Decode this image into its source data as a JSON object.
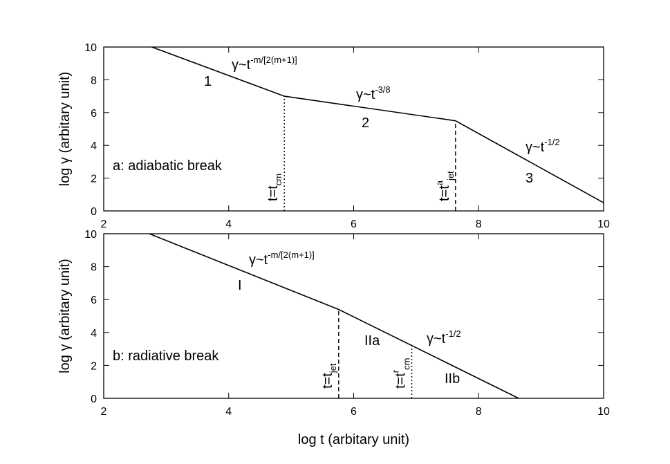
{
  "chart_data": [
    {
      "type": "line",
      "ylabel": "log γ (arbitary unit)",
      "xlim": [
        2,
        10
      ],
      "xticks": [
        2,
        4,
        6,
        8,
        10
      ],
      "ylim": [
        0,
        10
      ],
      "yticks": [
        0,
        2,
        4,
        6,
        8,
        10
      ],
      "series": [
        {
          "color": "#000000",
          "x": [
            2.77,
            4.89,
            7.63,
            10
          ],
          "values": [
            10,
            7,
            5.5,
            0.5
          ]
        }
      ],
      "vlines": [
        {
          "x": 4.89,
          "y": 7,
          "dash": "dotted",
          "label": {
            "text": "t=t",
            "sub": "cm"
          }
        },
        {
          "x": 7.63,
          "y": 5.5,
          "dash": "dashed",
          "label": {
            "text": "t=t",
            "sup": "a",
            "sub": "jet"
          }
        }
      ],
      "annotations": [
        {
          "text": "γ~t",
          "sup": "-m/[2(m+1)]"
        },
        {
          "text": "1"
        },
        {
          "text": "γ~t",
          "sup": "-3/8"
        },
        {
          "text": "2"
        },
        {
          "text": "γ~t",
          "sup": "-1/2"
        },
        {
          "text": "3"
        },
        {
          "text": "a: adiabatic break"
        }
      ]
    },
    {
      "type": "line",
      "ylabel": "log γ (arbitary unit)",
      "xlabel": "log t (arbitary unit)",
      "xlim": [
        2,
        10
      ],
      "xticks": [
        2,
        4,
        6,
        8,
        10
      ],
      "ylim": [
        0,
        10
      ],
      "yticks": [
        0,
        2,
        4,
        6,
        8,
        10
      ],
      "series": [
        {
          "color": "#000000",
          "x": [
            2.73,
            5.76,
            8.64
          ],
          "values": [
            10,
            5.4,
            0
          ]
        }
      ],
      "vlines": [
        {
          "x": 5.76,
          "y": 5.4,
          "dash": "dashed",
          "label": {
            "text": "t=t",
            "sub": "jet"
          }
        },
        {
          "x": 6.93,
          "y": 3.2,
          "dash": "dotted",
          "label": {
            "text": "t=t",
            "sup": "r",
            "sub": "cm"
          }
        }
      ],
      "annotations": [
        {
          "text": "γ~t",
          "sup": "-m/[2(m+1)]"
        },
        {
          "text": "I"
        },
        {
          "text": "IIa"
        },
        {
          "text": "γ~t",
          "sup": "-1/2"
        },
        {
          "text": "IIb"
        },
        {
          "text": "b: radiative break"
        }
      ]
    }
  ]
}
